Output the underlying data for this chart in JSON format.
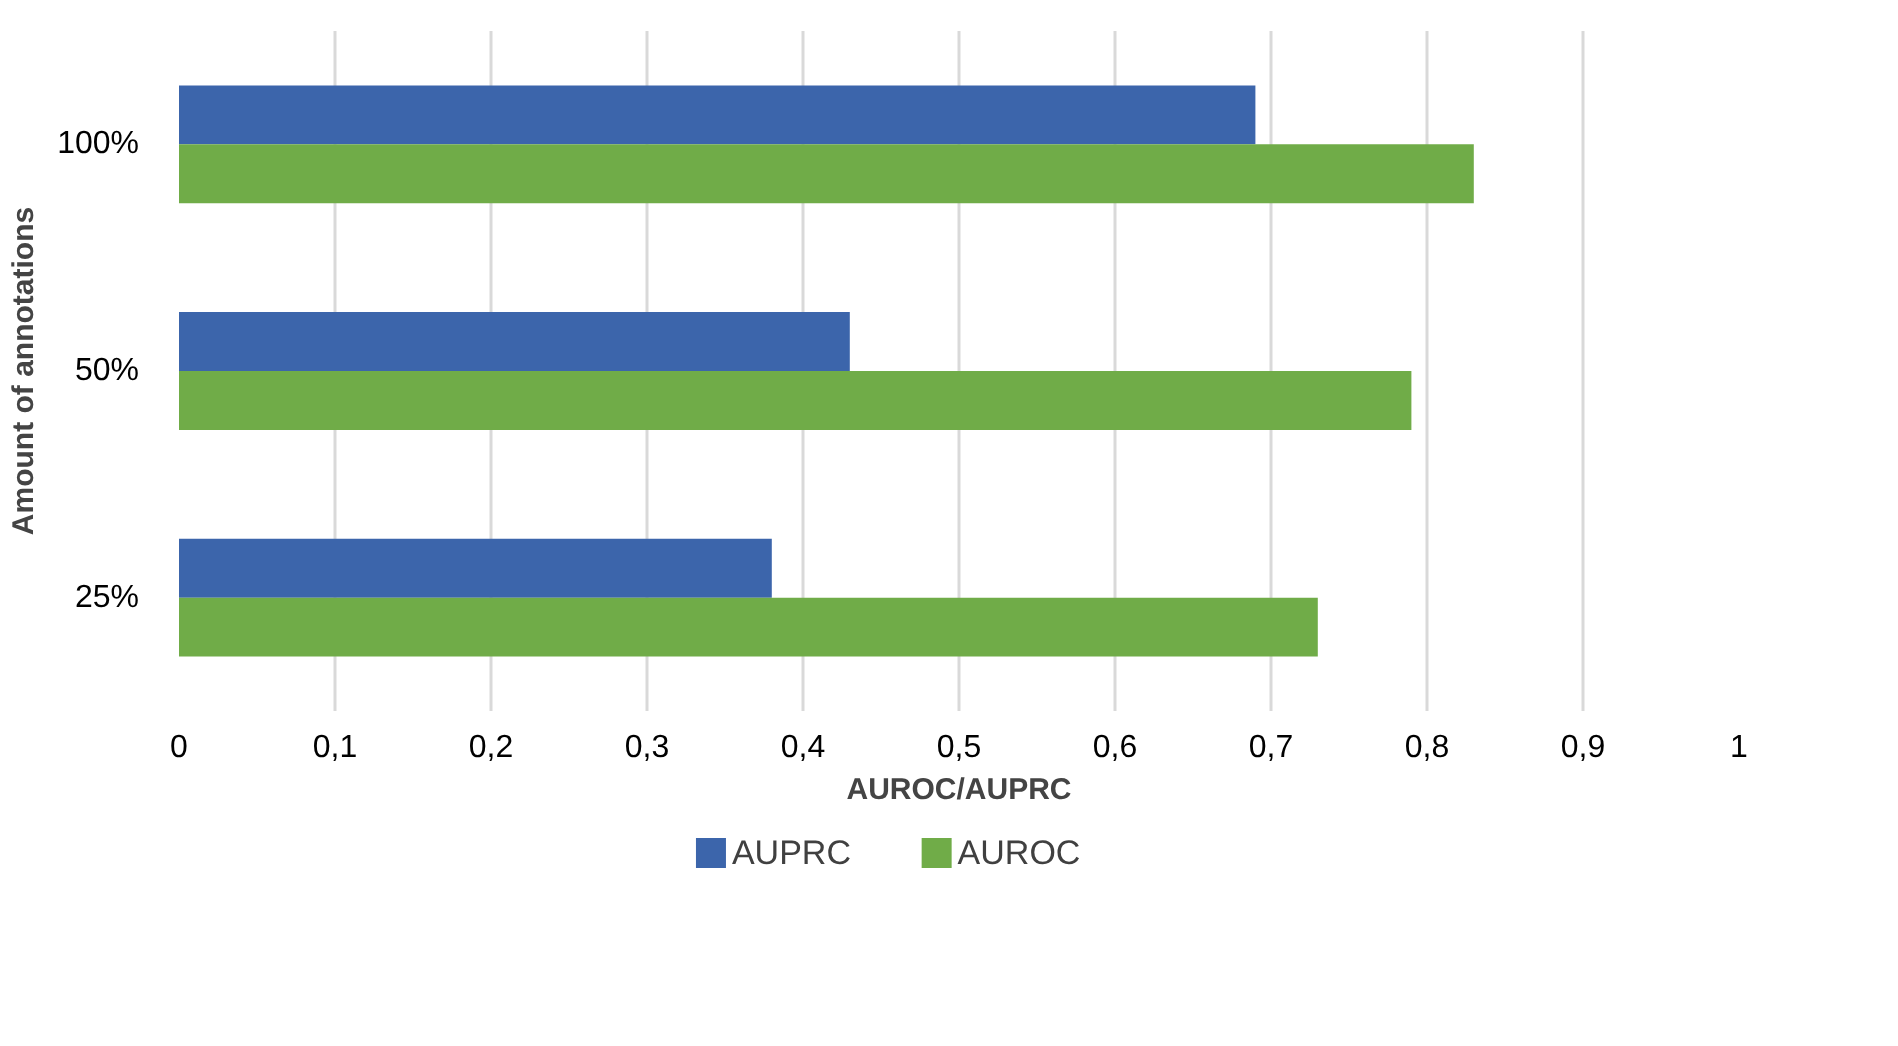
{
  "chart_data": {
    "type": "bar",
    "orientation": "horizontal",
    "xlabel": "AUROC/AUPRC",
    "ylabel": "Amount of annotations",
    "categories": [
      "100%",
      "50%",
      "25%"
    ],
    "series": [
      {
        "name": "AUPRC",
        "color": "#3c65ab",
        "values": [
          0.69,
          0.43,
          0.38
        ]
      },
      {
        "name": "AUROC",
        "color": "#70ac48",
        "values": [
          0.83,
          0.79,
          0.73
        ]
      }
    ],
    "xlim": [
      0,
      1
    ],
    "xticks": [
      0,
      {
        "value": 0.1,
        "label": "0,1"
      },
      {
        "value": 0.2,
        "label": "0,2"
      },
      {
        "value": 0.3,
        "label": "0,3"
      },
      {
        "value": 0.4,
        "label": "0,4"
      },
      {
        "value": 0.5,
        "label": "0,5"
      },
      {
        "value": 0.6,
        "label": "0,6"
      },
      {
        "value": 0.7,
        "label": "0,7"
      },
      {
        "value": 0.8,
        "label": "0,8"
      },
      {
        "value": 0.9,
        "label": "0,9"
      },
      1
    ],
    "grid": "x",
    "legend": "bottom"
  }
}
